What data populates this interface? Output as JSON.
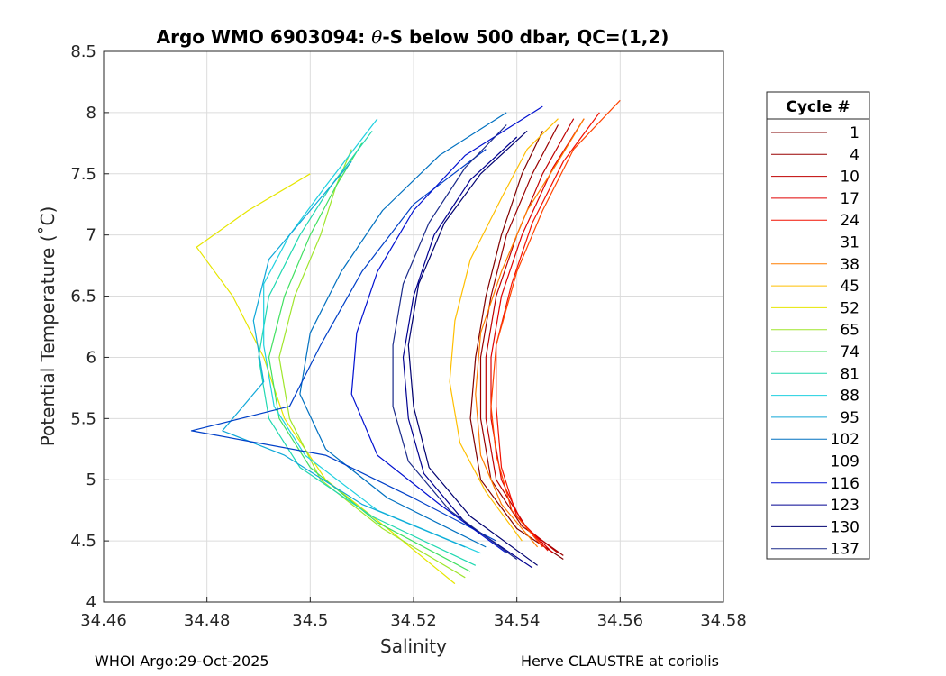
{
  "chart_data": {
    "type": "line",
    "title_prefix": "Argo WMO 6903094: ",
    "title_symbol": "θ",
    "title_suffix": "-S below 500 dbar,  QC=(1,2)",
    "xlabel": "Salinity",
    "ylabel": "Potential Temperature (˚C)",
    "xlim": [
      34.46,
      34.58
    ],
    "ylim": [
      4,
      8.5
    ],
    "xticks": [
      "34.46",
      "34.48",
      "34.5",
      "34.52",
      "34.54",
      "34.56",
      "34.58"
    ],
    "yticks": [
      "4",
      "4.5",
      "5",
      "5.5",
      "6",
      "6.5",
      "7",
      "7.5",
      "8",
      "8.5"
    ],
    "grid": true,
    "legend_title": "Cycle #",
    "legend_position": "right",
    "series": [
      {
        "name": "1",
        "color": "#800000",
        "values": [
          [
            34.549,
            4.35
          ],
          [
            34.54,
            4.6
          ],
          [
            34.533,
            5.0
          ],
          [
            34.531,
            5.5
          ],
          [
            34.532,
            6.0
          ],
          [
            34.534,
            6.5
          ],
          [
            34.537,
            7.0
          ],
          [
            34.541,
            7.5
          ],
          [
            34.545,
            7.85
          ]
        ]
      },
      {
        "name": "4",
        "color": "#990000",
        "values": [
          [
            34.549,
            4.38
          ],
          [
            34.541,
            4.62
          ],
          [
            34.535,
            5.0
          ],
          [
            34.533,
            5.5
          ],
          [
            34.533,
            6.0
          ],
          [
            34.535,
            6.5
          ],
          [
            34.538,
            7.0
          ],
          [
            34.543,
            7.5
          ],
          [
            34.548,
            7.9
          ]
        ]
      },
      {
        "name": "10",
        "color": "#bf0000",
        "values": [
          [
            34.548,
            4.4
          ],
          [
            34.542,
            4.6
          ],
          [
            34.536,
            5.0
          ],
          [
            34.534,
            5.5
          ],
          [
            34.534,
            6.0
          ],
          [
            34.536,
            6.5
          ],
          [
            34.54,
            7.0
          ],
          [
            34.545,
            7.5
          ],
          [
            34.551,
            7.95
          ]
        ]
      },
      {
        "name": "17",
        "color": "#e00000",
        "values": [
          [
            34.547,
            4.4
          ],
          [
            34.541,
            4.65
          ],
          [
            34.537,
            5.0
          ],
          [
            34.535,
            5.5
          ],
          [
            34.535,
            6.0
          ],
          [
            34.537,
            6.5
          ],
          [
            34.541,
            7.0
          ],
          [
            34.547,
            7.55
          ],
          [
            34.553,
            7.95
          ]
        ]
      },
      {
        "name": "24",
        "color": "#f21100",
        "values": [
          [
            34.546,
            4.42
          ],
          [
            34.54,
            4.7
          ],
          [
            34.537,
            5.1
          ],
          [
            34.536,
            5.6
          ],
          [
            34.536,
            6.1
          ],
          [
            34.539,
            6.6
          ],
          [
            34.543,
            7.1
          ],
          [
            34.549,
            7.6
          ],
          [
            34.556,
            8.0
          ]
        ]
      },
      {
        "name": "31",
        "color": "#ff4400",
        "values": [
          [
            34.545,
            4.45
          ],
          [
            34.539,
            4.75
          ],
          [
            34.536,
            5.2
          ],
          [
            34.535,
            5.6
          ],
          [
            34.536,
            6.1
          ],
          [
            34.54,
            6.7
          ],
          [
            34.545,
            7.2
          ],
          [
            34.551,
            7.7
          ],
          [
            34.56,
            8.1
          ]
        ]
      },
      {
        "name": "38",
        "color": "#ff7f00",
        "values": [
          [
            34.544,
            4.45
          ],
          [
            34.537,
            4.8
          ],
          [
            34.533,
            5.2
          ],
          [
            34.532,
            5.7
          ],
          [
            34.533,
            6.2
          ],
          [
            34.537,
            6.7
          ],
          [
            34.542,
            7.2
          ],
          [
            34.548,
            7.6
          ],
          [
            34.553,
            7.95
          ]
        ]
      },
      {
        "name": "45",
        "color": "#ffbf00",
        "values": [
          [
            34.541,
            4.5
          ],
          [
            34.534,
            4.9
          ],
          [
            34.529,
            5.3
          ],
          [
            34.527,
            5.8
          ],
          [
            34.528,
            6.3
          ],
          [
            34.531,
            6.8
          ],
          [
            34.537,
            7.3
          ],
          [
            34.542,
            7.7
          ],
          [
            34.548,
            7.95
          ]
        ]
      },
      {
        "name": "52",
        "color": "#e6e600",
        "values": [
          [
            34.528,
            4.15
          ],
          [
            34.515,
            4.6
          ],
          [
            34.503,
            5.0
          ],
          [
            34.495,
            5.5
          ],
          [
            34.491,
            6.0
          ],
          [
            34.485,
            6.5
          ],
          [
            34.478,
            6.9
          ],
          [
            34.488,
            7.2
          ],
          [
            34.5,
            7.5
          ]
        ]
      },
      {
        "name": "65",
        "color": "#9fe62c",
        "values": [
          [
            34.53,
            4.2
          ],
          [
            34.514,
            4.6
          ],
          [
            34.502,
            5.0
          ],
          [
            34.496,
            5.5
          ],
          [
            34.494,
            6.0
          ],
          [
            34.497,
            6.5
          ],
          [
            34.502,
            7.0
          ],
          [
            34.505,
            7.4
          ],
          [
            34.508,
            7.7
          ]
        ]
      },
      {
        "name": "74",
        "color": "#40e060",
        "values": [
          [
            34.531,
            4.25
          ],
          [
            34.513,
            4.65
          ],
          [
            34.5,
            5.1
          ],
          [
            34.494,
            5.5
          ],
          [
            34.492,
            6.0
          ],
          [
            34.495,
            6.5
          ],
          [
            34.5,
            7.0
          ],
          [
            34.505,
            7.4
          ],
          [
            34.51,
            7.75
          ]
        ]
      },
      {
        "name": "81",
        "color": "#20d8b0",
        "values": [
          [
            34.532,
            4.3
          ],
          [
            34.512,
            4.7
          ],
          [
            34.498,
            5.1
          ],
          [
            34.492,
            5.5
          ],
          [
            34.49,
            6.0
          ],
          [
            34.492,
            6.5
          ],
          [
            34.498,
            7.0
          ],
          [
            34.504,
            7.4
          ],
          [
            34.512,
            7.85
          ]
        ]
      },
      {
        "name": "88",
        "color": "#1fd0e0",
        "values": [
          [
            34.533,
            4.4
          ],
          [
            34.513,
            4.75
          ],
          [
            34.499,
            5.2
          ],
          [
            34.493,
            5.6
          ],
          [
            34.491,
            6.1
          ],
          [
            34.491,
            6.6
          ],
          [
            34.496,
            7.0
          ],
          [
            34.503,
            7.4
          ],
          [
            34.513,
            7.95
          ]
        ]
      },
      {
        "name": "95",
        "color": "#10a8d8",
        "values": [
          [
            34.53,
            4.45
          ],
          [
            34.51,
            4.8
          ],
          [
            34.495,
            5.2
          ],
          [
            34.483,
            5.4
          ],
          [
            34.491,
            5.8
          ],
          [
            34.489,
            6.3
          ],
          [
            34.492,
            6.8
          ],
          [
            34.5,
            7.2
          ],
          [
            34.508,
            7.6
          ]
        ]
      },
      {
        "name": "102",
        "color": "#0070c0",
        "values": [
          [
            34.534,
            4.45
          ],
          [
            34.515,
            4.85
          ],
          [
            34.503,
            5.25
          ],
          [
            34.498,
            5.7
          ],
          [
            34.5,
            6.2
          ],
          [
            34.506,
            6.7
          ],
          [
            34.514,
            7.2
          ],
          [
            34.525,
            7.65
          ],
          [
            34.538,
            8.0
          ]
        ]
      },
      {
        "name": "109",
        "color": "#0040c8",
        "values": [
          [
            34.536,
            4.5
          ],
          [
            34.52,
            4.85
          ],
          [
            34.503,
            5.2
          ],
          [
            34.477,
            5.4
          ],
          [
            34.496,
            5.6
          ],
          [
            34.502,
            6.1
          ],
          [
            34.51,
            6.7
          ],
          [
            34.52,
            7.25
          ],
          [
            34.534,
            7.7
          ]
        ]
      },
      {
        "name": "116",
        "color": "#0010d0",
        "values": [
          [
            34.538,
            4.4
          ],
          [
            34.525,
            4.8
          ],
          [
            34.513,
            5.2
          ],
          [
            34.508,
            5.7
          ],
          [
            34.509,
            6.2
          ],
          [
            34.513,
            6.7
          ],
          [
            34.52,
            7.2
          ],
          [
            34.53,
            7.65
          ],
          [
            34.545,
            8.05
          ]
        ]
      },
      {
        "name": "123",
        "color": "#000090",
        "values": [
          [
            34.543,
            4.28
          ],
          [
            34.53,
            4.65
          ],
          [
            34.522,
            5.05
          ],
          [
            34.519,
            5.5
          ],
          [
            34.518,
            6.0
          ],
          [
            34.52,
            6.5
          ],
          [
            34.524,
            7.0
          ],
          [
            34.531,
            7.45
          ],
          [
            34.54,
            7.8
          ]
        ]
      },
      {
        "name": "130",
        "color": "#000070",
        "values": [
          [
            34.544,
            4.3
          ],
          [
            34.531,
            4.7
          ],
          [
            34.523,
            5.1
          ],
          [
            34.52,
            5.6
          ],
          [
            34.519,
            6.1
          ],
          [
            34.521,
            6.6
          ],
          [
            34.526,
            7.1
          ],
          [
            34.533,
            7.5
          ],
          [
            34.542,
            7.85
          ]
        ]
      },
      {
        "name": "137",
        "color": "#1a2a8a",
        "values": [
          [
            34.54,
            4.35
          ],
          [
            34.527,
            4.75
          ],
          [
            34.519,
            5.15
          ],
          [
            34.516,
            5.6
          ],
          [
            34.516,
            6.1
          ],
          [
            34.518,
            6.6
          ],
          [
            34.523,
            7.1
          ],
          [
            34.53,
            7.55
          ],
          [
            34.538,
            7.9
          ]
        ]
      }
    ]
  },
  "footer": {
    "left": "WHOI Argo:29-Oct-2025",
    "right": "Herve CLAUSTRE at coriolis"
  }
}
